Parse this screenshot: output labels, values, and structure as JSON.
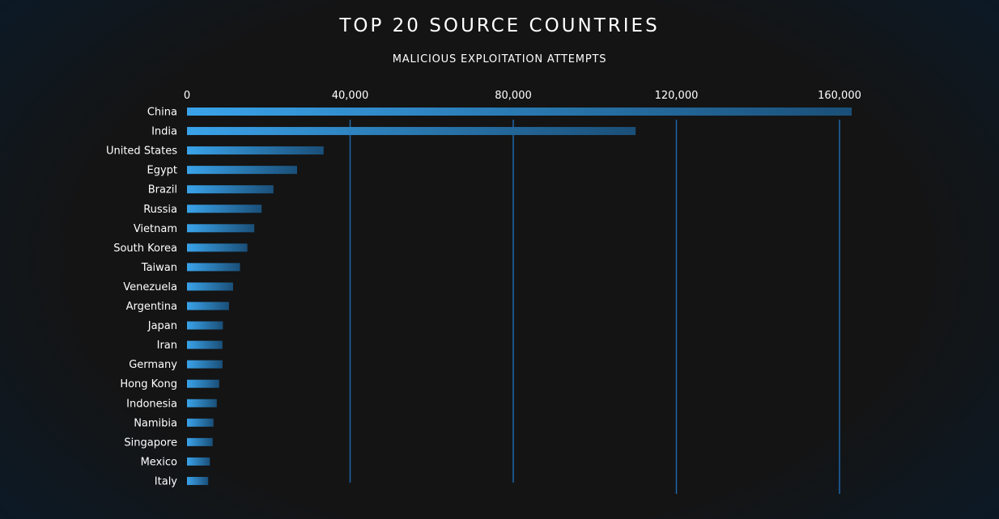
{
  "chart_data": {
    "type": "bar",
    "orientation": "horizontal",
    "title": "TOP 20 SOURCE COUNTRIES",
    "subtitle": "MALICIOUS EXPLOITATION ATTEMPTS",
    "categories": [
      "China",
      "India",
      "United States",
      "Egypt",
      "Brazil",
      "Russia",
      "Vietnam",
      "South Korea",
      "Taiwan",
      "Venezuela",
      "Argentina",
      "Japan",
      "Iran",
      "Germany",
      "Hong Kong",
      "Indonesia",
      "Namibia",
      "Singapore",
      "Mexico",
      "Italy"
    ],
    "values": [
      163000,
      110000,
      33500,
      27000,
      21200,
      18300,
      16500,
      14800,
      13000,
      11300,
      10300,
      8800,
      8700,
      8700,
      7900,
      7300,
      6500,
      6300,
      5600,
      5200
    ],
    "xticks": [
      0,
      40000,
      80000,
      120000,
      160000
    ],
    "xtick_labels": [
      "0",
      "40,000",
      "80,000",
      "120,000",
      "160,000"
    ],
    "xlim": [
      0,
      160000
    ],
    "grid": true,
    "colors": {
      "bar_start": "#3aa3ea",
      "bar_end": "#1a4f78",
      "grid": "#1e67a8"
    }
  }
}
